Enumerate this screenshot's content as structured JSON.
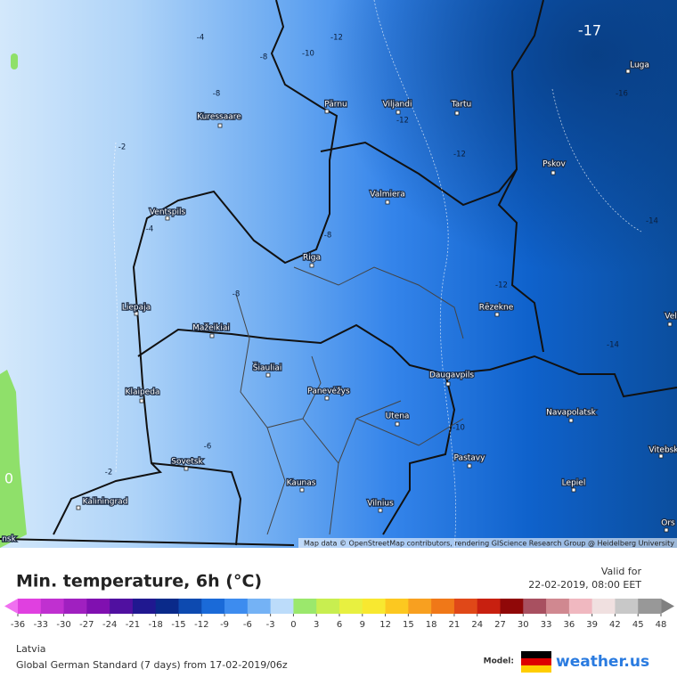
{
  "map": {
    "cities": [
      "Kuressaare",
      "Pärnu",
      "Viljandi",
      "Tartu",
      "Luga",
      "Pskov",
      "Valmiera",
      "Ventspils",
      "Riga",
      "Liepaja",
      "Rēzekne",
      "Mažeikiai",
      "Šiauliai",
      "Panevėžys",
      "Daugavpils",
      "Klaipeda",
      "Utena",
      "Navapolatsk",
      "Vitebsk",
      "Sovetsk",
      "Kaunas",
      "Pastavy",
      "Lepiel",
      "Kaliningrad",
      "Vilnius",
      "Vel",
      "Ors",
      "nsk"
    ],
    "contour_labels": [
      -4,
      -8,
      -12,
      -10,
      -17,
      -16,
      -12,
      -2,
      -12,
      -8,
      -4,
      -8,
      -8,
      -12,
      -14,
      -14,
      -6,
      -2,
      -10,
      0
    ],
    "attribution": "Map data © OpenStreetMap contributors, rendering GIScience Research Group @ Heidelberg University"
  },
  "legend": {
    "title": "Min. temperature, 6h (°C)",
    "valid_label": "Valid for",
    "valid_time": "22-02-2019, 08:00 EET",
    "ticks": [
      -36,
      -33,
      -30,
      -27,
      -24,
      -21,
      -18,
      -15,
      -12,
      -9,
      -6,
      -3,
      0,
      3,
      6,
      9,
      12,
      15,
      18,
      21,
      24,
      27,
      30,
      33,
      36,
      39,
      42,
      45,
      48
    ],
    "colors": [
      "#e040e0",
      "#c030d0",
      "#a020c0",
      "#8010b0",
      "#5010a0",
      "#201890",
      "#0a2a8a",
      "#0d4ab0",
      "#1a6ad8",
      "#3d8cef",
      "#74b2f5",
      "#bcdcfa",
      "#9be86c",
      "#c8ee50",
      "#e8f040",
      "#f8e830",
      "#fcc820",
      "#f8a020",
      "#f07818",
      "#e04818",
      "#c82010",
      "#900808",
      "#a85060",
      "#d08890",
      "#f0b8c0",
      "#f0e0e0",
      "#c8c8c8",
      "#989898"
    ],
    "under_color": "#f070f0",
    "over_color": "#808080",
    "region": "Latvia",
    "model_run": "Global German Standard (7 days) from 17-02-2019/06z",
    "model_label": "Model:",
    "brand": "weather.us"
  }
}
